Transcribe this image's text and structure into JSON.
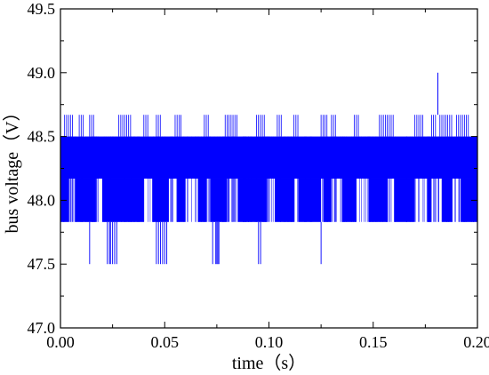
{
  "chart_data": {
    "type": "line",
    "title": "",
    "xlabel": "time（s）",
    "ylabel": "bus voltage（V）",
    "xlim": [
      0.0,
      0.2
    ],
    "ylim": [
      47.0,
      49.5
    ],
    "x_ticks": [
      "0.00",
      "0.05",
      "0.10",
      "0.15",
      "0.20"
    ],
    "x_tick_values": [
      0.0,
      0.05,
      0.1,
      0.15,
      0.2
    ],
    "y_ticks": [
      "47.0",
      "47.5",
      "48.0",
      "48.5",
      "49.0",
      "49.5"
    ],
    "y_tick_values": [
      47.0,
      47.5,
      48.0,
      48.5,
      49.0,
      49.5
    ],
    "grid": false,
    "legend": "none",
    "series_color": "#0000ff",
    "series": [
      {
        "levels_V": [
          47.5,
          47.83,
          48.17,
          48.5,
          48.67,
          49.0
        ],
        "main_band_V": [
          47.83,
          48.5
        ],
        "dense_band_V": [
          48.17,
          48.5
        ],
        "lower_segments": [
          [
            0.0,
            0.004
          ],
          [
            0.007,
            0.017
          ],
          [
            0.02,
            0.04
          ],
          [
            0.044,
            0.052
          ],
          [
            0.056,
            0.06
          ],
          [
            0.066,
            0.07
          ],
          [
            0.072,
            0.08
          ],
          [
            0.085,
            0.099
          ],
          [
            0.103,
            0.112
          ],
          [
            0.114,
            0.125
          ],
          [
            0.126,
            0.13
          ],
          [
            0.135,
            0.142
          ],
          [
            0.148,
            0.157
          ],
          [
            0.16,
            0.17
          ],
          [
            0.176,
            0.178
          ],
          [
            0.183,
            0.188
          ],
          [
            0.192,
            0.2
          ]
        ],
        "upper_segments": [
          [
            0.002,
            0.006
          ],
          [
            0.009,
            0.011
          ],
          [
            0.014,
            0.016
          ],
          [
            0.028,
            0.034
          ],
          [
            0.04,
            0.042
          ],
          [
            0.046,
            0.048
          ],
          [
            0.055,
            0.058
          ],
          [
            0.069,
            0.071
          ],
          [
            0.079,
            0.085
          ],
          [
            0.094,
            0.098
          ],
          [
            0.104,
            0.106
          ],
          [
            0.112,
            0.114
          ],
          [
            0.125,
            0.128
          ],
          [
            0.13,
            0.132
          ],
          [
            0.141,
            0.143
          ],
          [
            0.153,
            0.16
          ],
          [
            0.17,
            0.174
          ],
          [
            0.178,
            0.18
          ],
          [
            0.182,
            0.188
          ],
          [
            0.19,
            0.196
          ]
        ],
        "low_dips": [
          0.014,
          0.0225,
          0.0235,
          0.024,
          0.025,
          0.026,
          0.027,
          0.046,
          0.047,
          0.048,
          0.049,
          0.05,
          0.051,
          0.073,
          0.0745,
          0.075,
          0.0755,
          0.076,
          0.095,
          0.096,
          0.125
        ],
        "spike": {
          "x": 0.181,
          "y": 49.0
        }
      }
    ]
  }
}
